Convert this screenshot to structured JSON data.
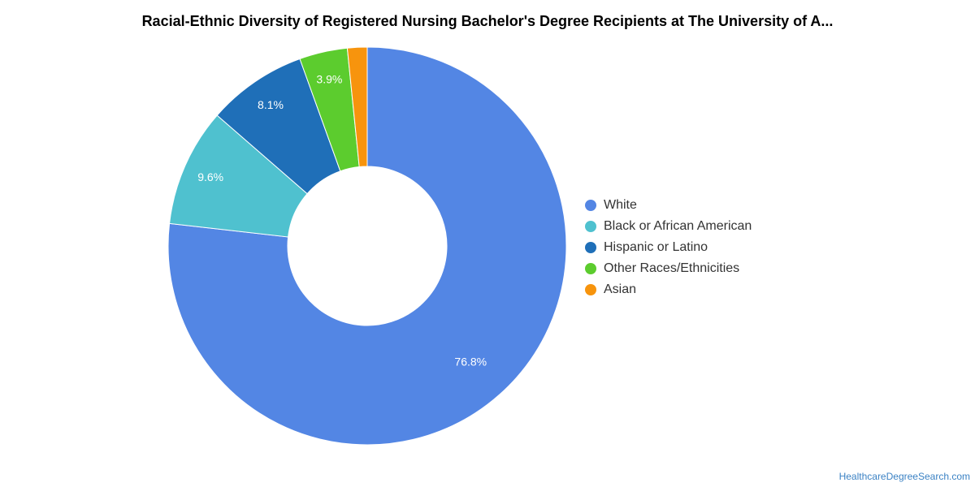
{
  "chart_data": {
    "type": "pie",
    "title": "Racial-Ethnic Diversity of Registered Nursing Bachelor's Degree Recipients at The University of A...",
    "donut": true,
    "slices": [
      {
        "label": "White",
        "value": 76.8,
        "display": "76.8%",
        "color": "#5386e4"
      },
      {
        "label": "Black or African American",
        "value": 9.6,
        "display": "9.6%",
        "color": "#4fc1cf"
      },
      {
        "label": "Hispanic or Latino",
        "value": 8.1,
        "display": "8.1%",
        "color": "#1f6fb8"
      },
      {
        "label": "Other Races/Ethnicities",
        "value": 3.9,
        "display": "3.9%",
        "color": "#5ccc2e"
      },
      {
        "label": "Asian",
        "value": 1.6,
        "display": "",
        "color": "#f7940d"
      }
    ],
    "legend_position": "right"
  },
  "footer": {
    "source": "HealthcareDegreeSearch.com"
  }
}
